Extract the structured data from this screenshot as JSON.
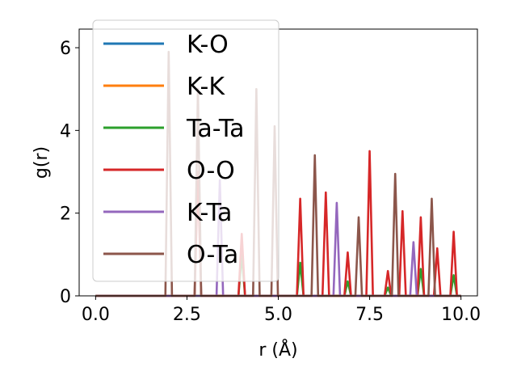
{
  "chart_data": {
    "type": "line",
    "xlabel": "r (Å)",
    "ylabel": "g(r)",
    "xlim": [
      -0.45,
      10.45
    ],
    "ylim": [
      0,
      6.45
    ],
    "xticks": [
      0.0,
      2.5,
      5.0,
      7.5,
      10.0
    ],
    "xtick_labels": [
      "0.0",
      "2.5",
      "5.0",
      "7.5",
      "10.0"
    ],
    "yticks": [
      0,
      2,
      4,
      6
    ],
    "ytick_labels": [
      "0",
      "2",
      "4",
      "6"
    ],
    "grid": false,
    "legend_position": "top-left",
    "peak_half_width": 0.09,
    "series": [
      {
        "name": "K-O",
        "color": "#1f77b4",
        "peaks": []
      },
      {
        "name": "K-K",
        "color": "#ff7f0e",
        "peaks": []
      },
      {
        "name": "Ta-Ta",
        "color": "#2ca02c",
        "peaks": [
          [
            4.0,
            1.0
          ],
          [
            5.6,
            0.8
          ],
          [
            6.9,
            0.35
          ],
          [
            8.0,
            0.2
          ],
          [
            8.9,
            0.65
          ],
          [
            9.8,
            0.5
          ]
        ]
      },
      {
        "name": "O-O",
        "color": "#d62728",
        "peaks": [
          [
            2.8,
            3.0
          ],
          [
            4.0,
            1.5
          ],
          [
            5.6,
            2.35
          ],
          [
            6.3,
            2.5
          ],
          [
            6.9,
            1.05
          ],
          [
            7.5,
            3.5
          ],
          [
            8.0,
            0.6
          ],
          [
            8.4,
            2.05
          ],
          [
            8.9,
            1.9
          ],
          [
            9.35,
            1.15
          ],
          [
            9.8,
            1.55
          ]
        ]
      },
      {
        "name": "K-Ta",
        "color": "#9467bd",
        "peaks": [
          [
            3.4,
            2.8
          ],
          [
            6.6,
            2.25
          ],
          [
            8.7,
            1.3
          ]
        ]
      },
      {
        "name": "O-Ta",
        "color": "#8c564b",
        "peaks": [
          [
            2.0,
            5.9
          ],
          [
            2.8,
            5.0
          ],
          [
            4.4,
            5.0
          ],
          [
            4.9,
            4.1
          ],
          [
            6.0,
            3.4
          ],
          [
            7.2,
            1.9
          ],
          [
            8.2,
            2.95
          ],
          [
            9.2,
            2.35
          ]
        ]
      }
    ]
  }
}
